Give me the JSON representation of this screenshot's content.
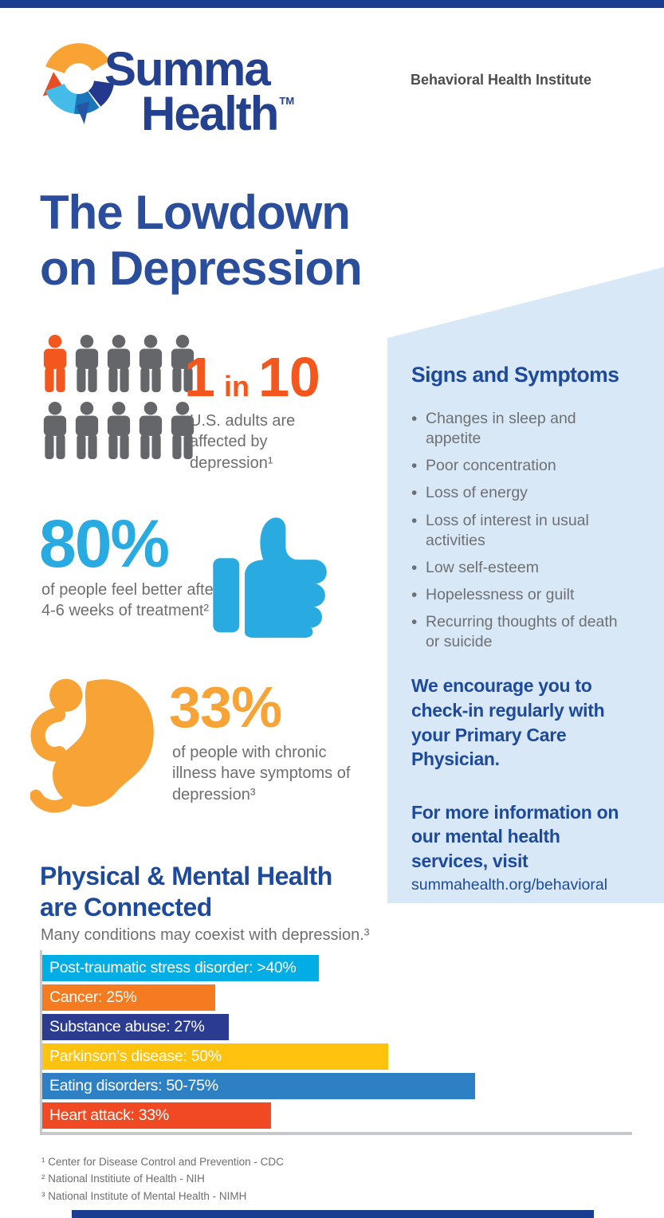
{
  "colors": {
    "accent_bar": "#1B3D91",
    "heading_blue": "#2A4E9C",
    "sidebar_background": "#D9E8F7",
    "sidebar_text_blue": "#1E4A9B",
    "body_gray": "#6D6E71",
    "orange": "#F3571D",
    "cyan": "#29ABE2",
    "amber": "#F8A336",
    "person_gray": "#64666A",
    "axis_gray": "#C7C8CA"
  },
  "header": {
    "logo": {
      "brand_line1": "Summa",
      "brand_line2": "Health",
      "trademark": "TM"
    },
    "institute_label": "Behavioral Health Institute"
  },
  "title": {
    "line1": "The Lowdown",
    "line2": "on Depression"
  },
  "stat_one_in_ten": {
    "total": 10,
    "highlighted": 1,
    "number_left": "1",
    "connector": "in",
    "number_right": "10",
    "caption": "U.S. adults are affected by depression¹"
  },
  "stat_eighty": {
    "value": "80%",
    "caption": "of people feel better after 4-6 weeks of treatment²"
  },
  "stat_thirty_three": {
    "value": "33%",
    "caption": "of people with chronic illness have symptoms of depression³"
  },
  "sidebar": {
    "heading": "Signs and Symptoms",
    "symptoms": [
      "Changes in sleep and appetite",
      "Poor concentration",
      "Loss of energy",
      "Loss of interest in usual activities",
      "Low self-esteem",
      "Hopelessness or guilt",
      "Recurring thoughts of death or suicide"
    ],
    "encouragement": "We encourage you to check-in regularly with your Primary Care Physician.",
    "more_info": "For more information on our mental health services, visit",
    "url": "summahealth.org/behavioral"
  },
  "section_connected": {
    "heading_line1": "Physical & Mental Health",
    "heading_line2": "are Connected",
    "subheading": "Many conditions may coexist with depression.³"
  },
  "chart_data": {
    "type": "bar",
    "orientation": "horizontal",
    "title": "Physical & Mental Health are Connected",
    "subtitle": "Many conditions may coexist with depression.³",
    "x_axis_max_pct": 85,
    "grid": false,
    "bars": [
      {
        "condition": "Post-traumatic stress disorder",
        "value": 40,
        "value_display": ">40%",
        "label": "Post-traumatic stress disorder: >40%",
        "color": "#00AEE5"
      },
      {
        "condition": "Cancer",
        "value": 25,
        "value_display": "25%",
        "label": "Cancer: 25%",
        "color": "#F47B20"
      },
      {
        "condition": "Substance abuse",
        "value": 27,
        "value_display": "27%",
        "label": "Substance abuse: 27%",
        "color": "#2B3B8F"
      },
      {
        "condition": "Parkinson’s disease",
        "value": 50,
        "value_display": "50%",
        "label": "Parkinson’s disease: 50%",
        "color": "#FFC20E"
      },
      {
        "condition": "Eating disorders",
        "value": 62.5,
        "value_display": "50-75%",
        "label": "Eating disorders: 50-75%",
        "color": "#2E80C4"
      },
      {
        "condition": "Heart attack",
        "value": 33,
        "value_display": "33%",
        "label": "Heart attack: 33%",
        "color": "#EF4A23"
      }
    ]
  },
  "footnotes": [
    "¹ Center for Disease Control and Prevention - CDC",
    "² National Institiute of Health - NIH",
    "³ National Institute of Mental Health - NIMH"
  ]
}
